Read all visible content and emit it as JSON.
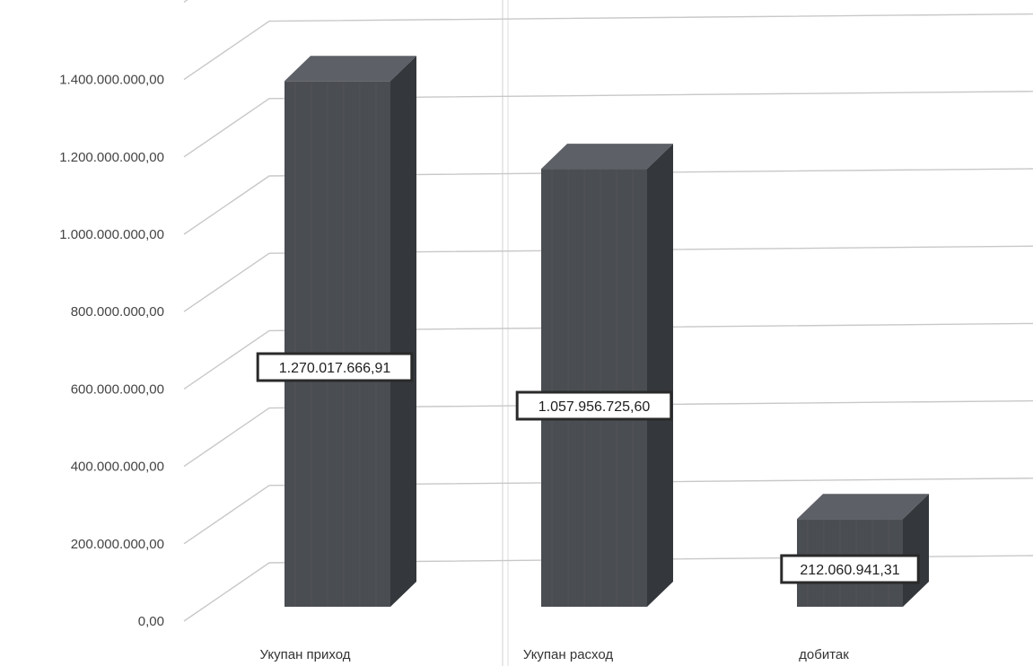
{
  "chart_data": {
    "type": "bar",
    "style": "3d-column",
    "categories": [
      "Укупан приход",
      "Укупан расход",
      "добитак"
    ],
    "values": [
      1270017666.91,
      1057956725.6,
      212060941.31
    ],
    "data_labels": [
      "1.270.017.666,91",
      "1.057.956.725,60",
      "212.060.941,31"
    ],
    "y_ticks": [
      {
        "value": 0,
        "label": "0,00"
      },
      {
        "value": 200000000,
        "label": "200.000.000,00"
      },
      {
        "value": 400000000,
        "label": "400.000.000,00"
      },
      {
        "value": 600000000,
        "label": "600.000.000,00"
      },
      {
        "value": 800000000,
        "label": "800.000.000,00"
      },
      {
        "value": 1000000000,
        "label": "1.000.000.000,00"
      },
      {
        "value": 1200000000,
        "label": "1.200.000.000,00"
      },
      {
        "value": 1400000000,
        "label": "1.400.000.000,00"
      }
    ],
    "ylim": [
      0,
      1600000000
    ],
    "grid": true,
    "legend": "none",
    "colors": {
      "bar_front": "#4a4d52",
      "bar_side": "#34373b",
      "bar_top": "#5d6066",
      "gridline": "#c8c8c8",
      "label_border": "#2a2a2a"
    }
  }
}
